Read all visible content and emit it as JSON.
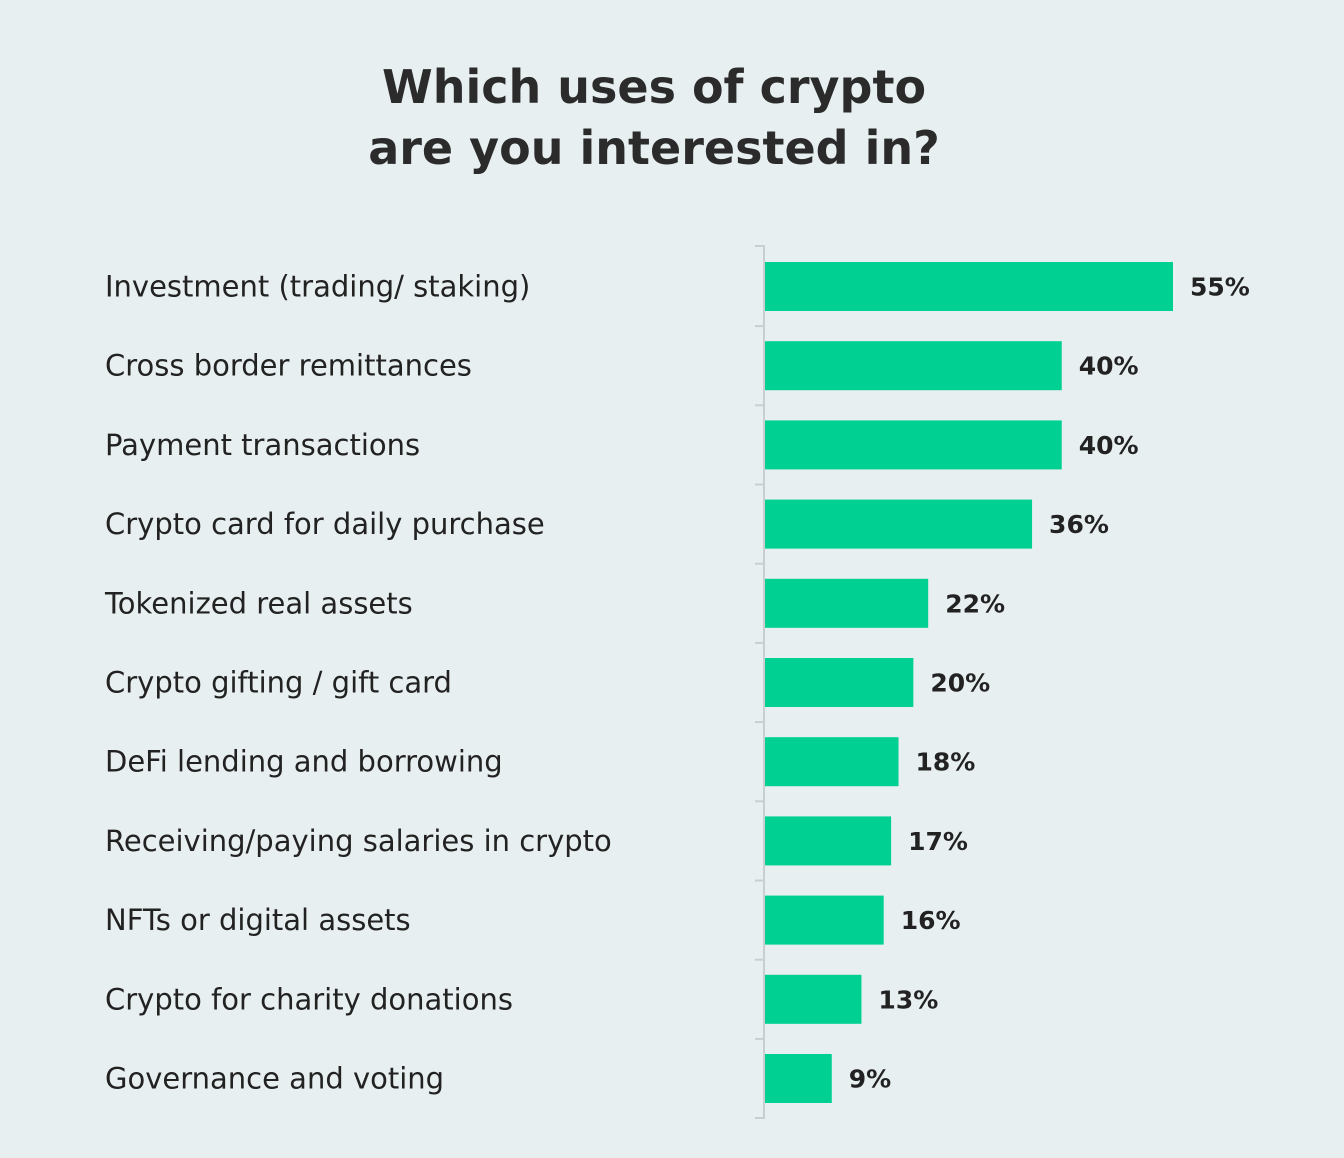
{
  "chart_data": {
    "type": "bar",
    "orientation": "horizontal",
    "title_lines": [
      "Which uses of crypto",
      "are you interested in?"
    ],
    "categories": [
      "Investment (trading/ staking)",
      "Cross border remittances",
      "Payment transactions",
      "Crypto card for daily purchase",
      "Tokenized real assets",
      "Crypto gifting / gift card",
      "DeFi lending and borrowing",
      "Receiving/paying salaries in crypto",
      "NFTs or digital assets",
      "Crypto for charity donations",
      "Governance and voting"
    ],
    "values": [
      55,
      40,
      40,
      36,
      22,
      20,
      18,
      17,
      16,
      13,
      9
    ],
    "value_labels": [
      "55%",
      "40%",
      "40%",
      "36%",
      "22%",
      "20%",
      "18%",
      "17%",
      "16%",
      "13%",
      "9%"
    ],
    "unit": "%",
    "bar_color": "#00d092",
    "xlim": [
      0,
      55
    ],
    "grid": false,
    "legend": "none"
  }
}
